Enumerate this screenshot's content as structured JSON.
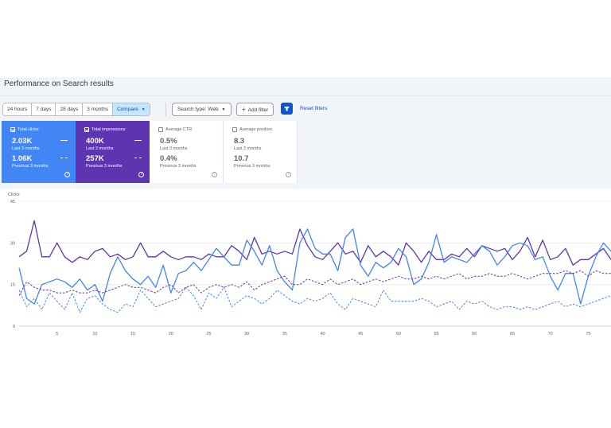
{
  "header": {
    "title": "Performance on Search results"
  },
  "date_range": {
    "options": [
      "24 hours",
      "7 days",
      "28 days",
      "3 months",
      "Compare"
    ],
    "active": "Compare"
  },
  "filters": {
    "search_type": "Search type: Web",
    "add_filter": "Add filter",
    "reset": "Reset filters"
  },
  "metrics": [
    {
      "label": "Total clicks",
      "value": "2.03K",
      "period": "Last 3 months",
      "prev_value": "1.06K",
      "prev_period": "Previous 3 months",
      "selected": true,
      "color": "#4285f4"
    },
    {
      "label": "Total impressions",
      "value": "400K",
      "period": "Last 3 months",
      "prev_value": "257K",
      "prev_period": "Previous 3 months",
      "selected": true,
      "color": "#5e35b1"
    },
    {
      "label": "Average CTR",
      "value": "0.5%",
      "period": "Last 3 months",
      "prev_value": "0.4%",
      "prev_period": "Previous 3 months",
      "selected": false
    },
    {
      "label": "Average position",
      "value": "8.3",
      "period": "Last 3 months",
      "prev_value": "10.7",
      "prev_period": "Previous 3 months",
      "selected": false
    }
  ],
  "chart_data": {
    "type": "line",
    "ylabel": "Clicks",
    "ylim": [
      0,
      45
    ],
    "yticks": [
      0,
      15,
      30,
      45
    ],
    "xticks": [
      5,
      10,
      15,
      20,
      25,
      30,
      35,
      40,
      45,
      50,
      55,
      60,
      65,
      70,
      75
    ],
    "xlim": [
      0,
      78
    ],
    "grid": true,
    "series": [
      {
        "style": "solid",
        "color": "#5e35b1",
        "x": [
          0,
          1,
          2,
          3,
          4,
          5,
          6,
          7,
          8,
          9,
          10,
          11,
          12,
          13,
          14,
          15,
          16,
          17,
          18,
          19,
          20,
          21,
          22,
          23,
          24,
          25,
          26,
          27,
          28,
          29,
          30,
          31,
          32,
          33,
          34,
          35,
          36,
          37,
          38,
          39,
          40,
          41,
          42,
          43,
          44,
          45,
          46,
          47,
          48,
          49,
          50,
          51,
          52,
          53,
          54,
          55,
          56,
          57,
          58,
          59,
          60,
          61,
          62,
          63,
          64,
          65,
          66,
          67,
          68,
          69,
          70,
          71,
          72,
          73,
          74,
          75,
          76,
          77,
          78
        ],
        "values": [
          25,
          27,
          38,
          25,
          25,
          30,
          25,
          23,
          25,
          24,
          27,
          28,
          25,
          26,
          24,
          25,
          30,
          25,
          25,
          27,
          25,
          24,
          25,
          25,
          24,
          26,
          25,
          25,
          29,
          27,
          24,
          32,
          26,
          27,
          26,
          27,
          26,
          35,
          29,
          25,
          24,
          27,
          30,
          26,
          27,
          23,
          29,
          25,
          27,
          25,
          22,
          30,
          27,
          23,
          27,
          24,
          24,
          26,
          25,
          28,
          25,
          29,
          28,
          27,
          28,
          24,
          27,
          32,
          25,
          31,
          24,
          25,
          28,
          22,
          24,
          24,
          26,
          28,
          24
        ]
      },
      {
        "style": "solid",
        "color": "#4285f4",
        "x": [
          0,
          1,
          2,
          3,
          4,
          5,
          6,
          7,
          8,
          9,
          10,
          11,
          12,
          13,
          14,
          15,
          16,
          17,
          18,
          19,
          20,
          21,
          22,
          23,
          24,
          25,
          26,
          27,
          28,
          29,
          30,
          31,
          32,
          33,
          34,
          35,
          36,
          37,
          38,
          39,
          40,
          41,
          42,
          43,
          44,
          45,
          46,
          47,
          48,
          49,
          50,
          51,
          52,
          53,
          54,
          55,
          56,
          57,
          58,
          59,
          60,
          61,
          62,
          63,
          64,
          65,
          66,
          67,
          68,
          69,
          70,
          71,
          72,
          73,
          74,
          75,
          76,
          77,
          78
        ],
        "values": [
          21,
          10,
          8,
          15,
          16,
          17,
          16,
          14,
          17,
          13,
          15,
          9,
          19,
          25,
          20,
          17,
          15,
          18,
          14,
          22,
          12,
          19,
          20,
          23,
          20,
          24,
          28,
          25,
          22,
          22,
          31,
          27,
          22,
          29,
          20,
          16,
          13,
          30,
          35,
          28,
          26,
          26,
          20,
          32,
          35,
          22,
          18,
          23,
          21,
          23,
          28,
          25,
          15,
          17,
          23,
          33,
          23,
          25,
          24,
          23,
          26,
          29,
          27,
          22,
          25,
          29,
          30,
          29,
          24,
          25,
          18,
          13,
          19,
          19,
          8,
          18,
          25,
          30,
          27
        ]
      },
      {
        "style": "dashed",
        "color": "#5e35b1",
        "x": [
          0,
          1,
          2,
          3,
          4,
          5,
          6,
          7,
          8,
          9,
          10,
          11,
          12,
          13,
          14,
          15,
          16,
          17,
          18,
          19,
          20,
          21,
          22,
          23,
          24,
          25,
          26,
          27,
          28,
          29,
          30,
          31,
          32,
          33,
          34,
          35,
          36,
          37,
          38,
          39,
          40,
          41,
          42,
          43,
          44,
          45,
          46,
          47,
          48,
          49,
          50,
          51,
          52,
          53,
          54,
          55,
          56,
          57,
          58,
          59,
          60,
          61,
          62,
          63,
          64,
          65,
          66,
          67,
          68,
          69,
          70,
          71,
          72,
          73,
          74,
          75,
          76,
          77,
          78
        ],
        "values": [
          11,
          16,
          14,
          13,
          13,
          12,
          12,
          13,
          12,
          12,
          13,
          12,
          13,
          14,
          15,
          14,
          14,
          13,
          12,
          14,
          15,
          12,
          14,
          15,
          12,
          14,
          15,
          14,
          15,
          14,
          16,
          13,
          15,
          16,
          17,
          18,
          15,
          15,
          17,
          16,
          15,
          17,
          15,
          16,
          17,
          15,
          16,
          17,
          16,
          17,
          18,
          17,
          17,
          18,
          17,
          18,
          17,
          18,
          19,
          17,
          18,
          18,
          19,
          18,
          18,
          19,
          18,
          17,
          18,
          19,
          19,
          19,
          20,
          19,
          20,
          18,
          20,
          19,
          19
        ]
      },
      {
        "style": "dashed",
        "color": "#4285f4",
        "x": [
          0,
          1,
          2,
          3,
          4,
          5,
          6,
          7,
          8,
          9,
          10,
          11,
          12,
          13,
          14,
          15,
          16,
          17,
          18,
          19,
          20,
          21,
          22,
          23,
          24,
          25,
          26,
          27,
          28,
          29,
          30,
          31,
          32,
          33,
          34,
          35,
          36,
          37,
          38,
          39,
          40,
          41,
          42,
          43,
          44,
          45,
          46,
          47,
          48,
          49,
          50,
          51,
          52,
          53,
          54,
          55,
          56,
          57,
          58,
          59,
          60,
          61,
          62,
          63,
          64,
          65,
          66,
          67,
          68,
          69,
          70,
          71,
          72,
          73,
          74,
          75,
          76,
          77,
          78
        ],
        "values": [
          13,
          7,
          10,
          6,
          12,
          9,
          6,
          12,
          5,
          10,
          11,
          8,
          6,
          5,
          8,
          7,
          13,
          10,
          7,
          8,
          9,
          10,
          14,
          11,
          6,
          12,
          10,
          14,
          7,
          9,
          11,
          10,
          8,
          10,
          13,
          11,
          9,
          8,
          10,
          9,
          10,
          12,
          8,
          6,
          10,
          9,
          8,
          7,
          13,
          9,
          9,
          9,
          9,
          10,
          9,
          7,
          8,
          9,
          6,
          9,
          8,
          9,
          7,
          6,
          7,
          7,
          6,
          7,
          6,
          7,
          8,
          9,
          7,
          8,
          7,
          8,
          9,
          10,
          11
        ]
      }
    ]
  }
}
